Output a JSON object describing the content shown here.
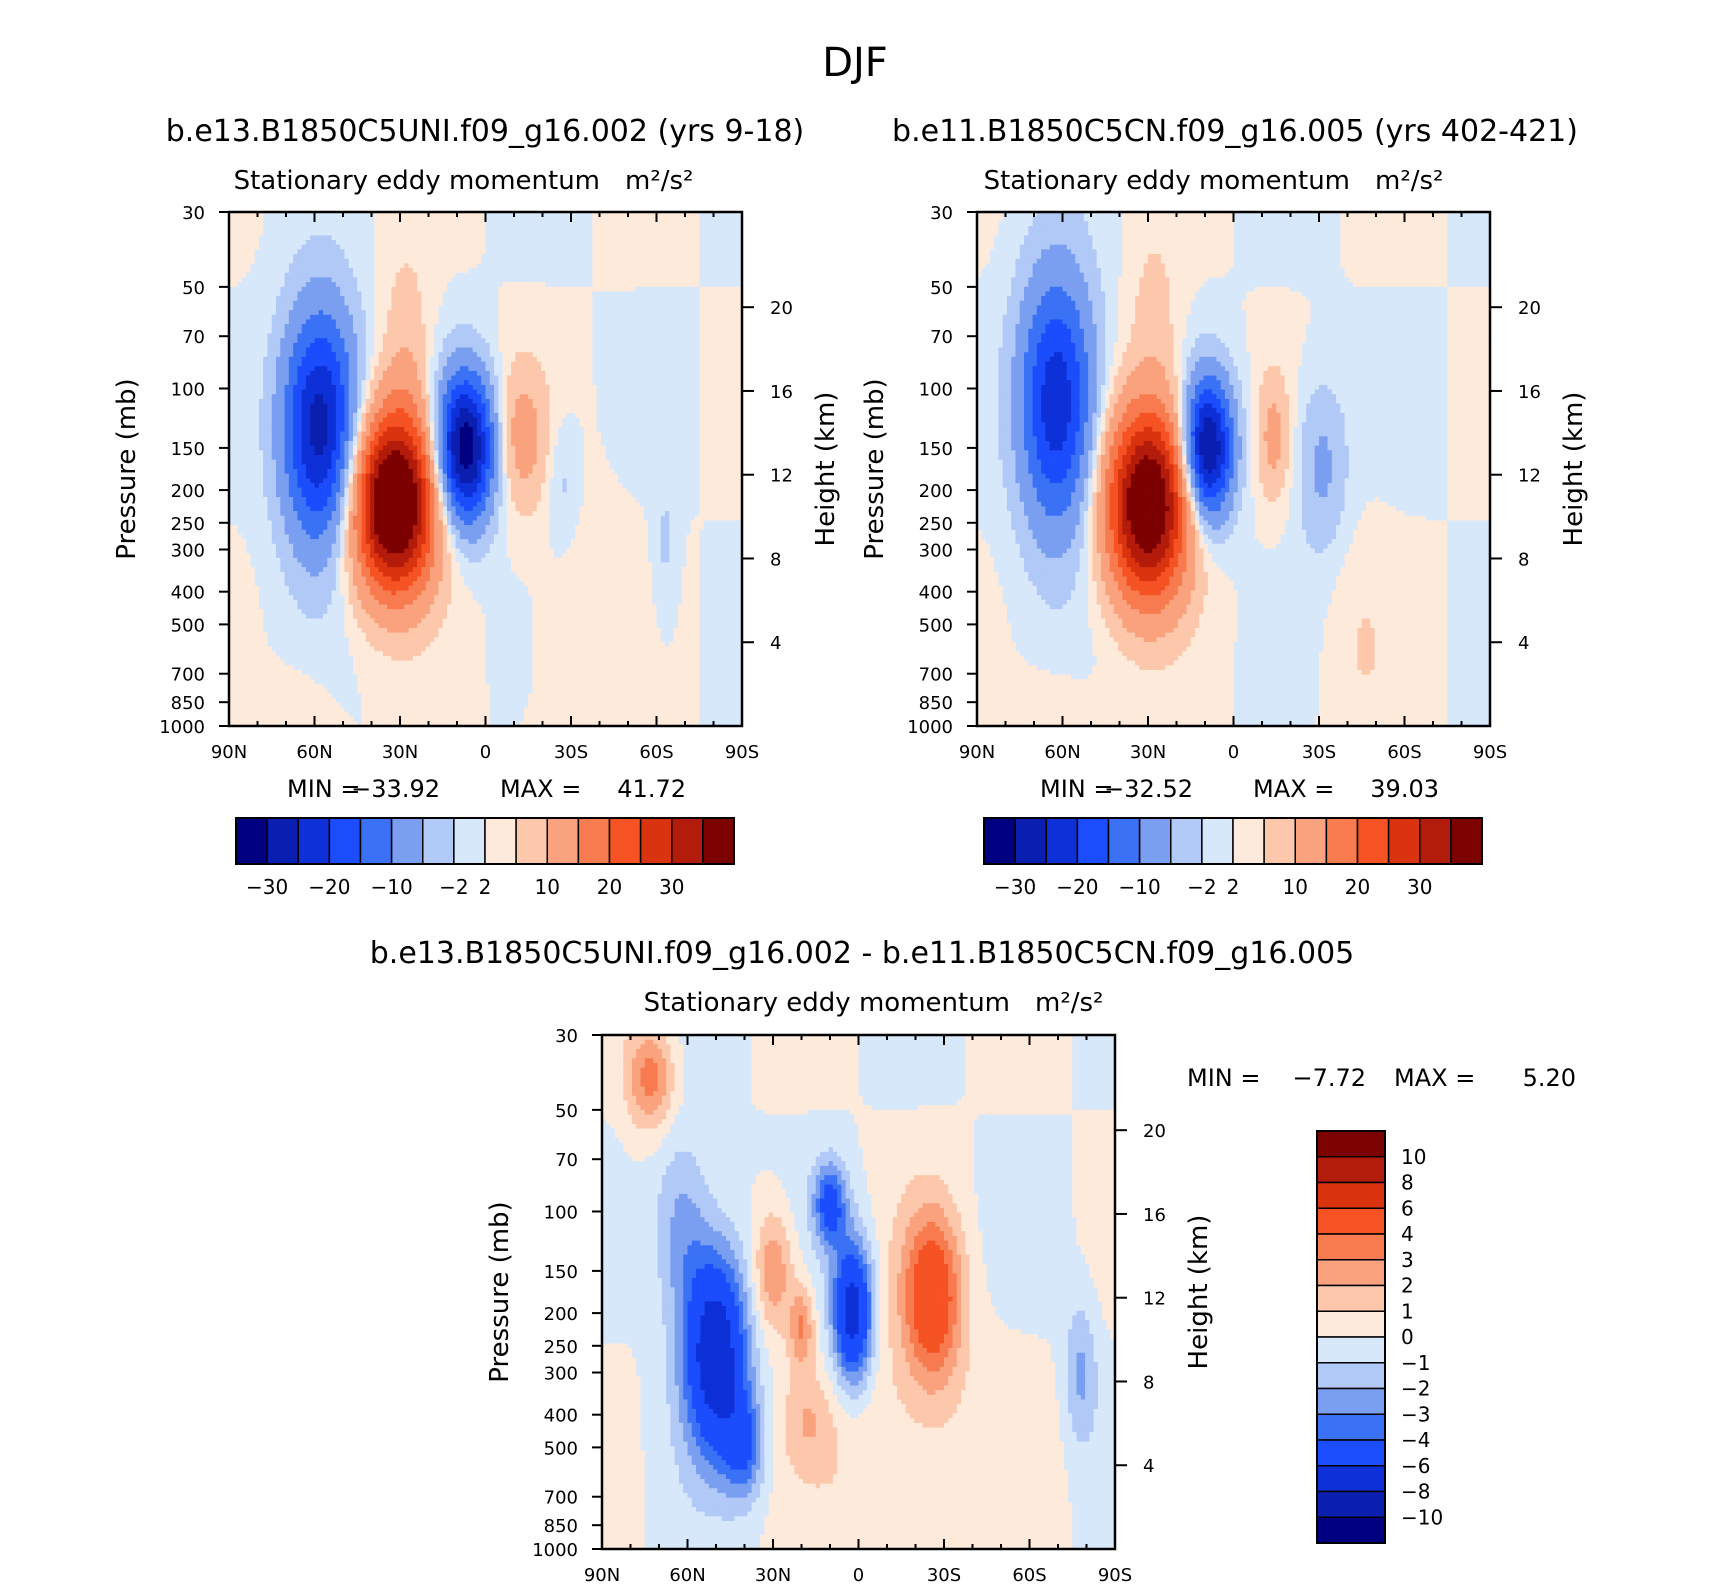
{
  "figure": {
    "title": "DJF",
    "units_label": "m²/s²"
  },
  "chart_data": [
    {
      "type": "contour",
      "id": "panel1",
      "run_title": "b.e13.B1850C5UNI.f09_g16.002 (yrs 9-18)",
      "subtitle": "Stationary eddy momentum",
      "ylabel": "Pressure (mb)",
      "y2label": "Height (km)",
      "x_ticks": [
        "90N",
        "60N",
        "30N",
        "0",
        "30S",
        "60S",
        "90S"
      ],
      "x_range": [
        90,
        -90
      ],
      "y_ticks": [
        30,
        50,
        70,
        100,
        150,
        200,
        250,
        300,
        400,
        500,
        700,
        850,
        1000
      ],
      "y_range_mb": [
        1000,
        30
      ],
      "y2_ticks": [
        4,
        8,
        12,
        16,
        20
      ],
      "min_label": "MIN =",
      "min": "-33.92",
      "max_label": "MAX =",
      "max": "41.72",
      "levels": [
        -30,
        -25,
        -20,
        -15,
        -10,
        -5,
        -2,
        0,
        2,
        5,
        10,
        15,
        20,
        25,
        30
      ],
      "colorbar_labels": [
        "-30",
        "-20",
        "-10",
        "-2",
        "2",
        "10",
        "20",
        "30"
      ],
      "features": [
        {
          "lat": 58,
          "p": 130,
          "value": -28,
          "lat_w": 9,
          "lp_w": 0.55
        },
        {
          "lat": 32,
          "p": 220,
          "value": 42,
          "lat_w": 10,
          "lp_w": 0.42
        },
        {
          "lat": 7,
          "p": 150,
          "value": -34,
          "lat_w": 7,
          "lp_w": 0.35
        },
        {
          "lat": -12,
          "p": 140,
          "value": 7,
          "lat_w": 7,
          "lp_w": 0.35
        },
        {
          "lat": -27,
          "p": 190,
          "value": -3,
          "lat_w": 4,
          "lp_w": 0.3
        },
        {
          "lat": -63,
          "p": 300,
          "value": -2.5,
          "lat_w": 3,
          "lp_w": 0.4
        },
        {
          "lat": 28,
          "p": 80,
          "value": 4,
          "lat_w": 6,
          "lp_w": 0.5
        },
        {
          "lat": -35,
          "p": 550,
          "value": 1.8,
          "lat_w": 12,
          "lp_w": 0.6
        },
        {
          "lat": 68,
          "p": 900,
          "value": 1.5,
          "lat_w": 10,
          "lp_w": 0.2
        }
      ]
    },
    {
      "type": "contour",
      "id": "panel2",
      "run_title": "b.e11.B1850C5CN.f09_g16.005 (yrs 402-421)",
      "subtitle": "Stationary eddy momentum",
      "ylabel": "Pressure (mb)",
      "y2label": "Height (km)",
      "x_ticks": [
        "90N",
        "60N",
        "30N",
        "0",
        "30S",
        "60S",
        "90S"
      ],
      "x_range": [
        90,
        -90
      ],
      "y_ticks": [
        30,
        50,
        70,
        100,
        150,
        200,
        250,
        300,
        400,
        500,
        700,
        850,
        1000
      ],
      "y_range_mb": [
        1000,
        30
      ],
      "y2_ticks": [
        4,
        8,
        12,
        16,
        20
      ],
      "min_label": "MIN =",
      "min": "-32.52",
      "max_label": "MAX =",
      "max": "39.03",
      "levels": [
        -30,
        -25,
        -20,
        -15,
        -10,
        -5,
        -2,
        0,
        2,
        5,
        10,
        15,
        20,
        25,
        30
      ],
      "colorbar_labels": [
        "-30",
        "-20",
        "-10",
        "-2",
        "2",
        "10",
        "20",
        "30"
      ],
      "features": [
        {
          "lat": 62,
          "p": 110,
          "value": -24,
          "lat_w": 9,
          "lp_w": 0.6
        },
        {
          "lat": 30,
          "p": 220,
          "value": 39,
          "lat_w": 10,
          "lp_w": 0.45
        },
        {
          "lat": 9,
          "p": 150,
          "value": -32,
          "lat_w": 6,
          "lp_w": 0.33
        },
        {
          "lat": -14,
          "p": 140,
          "value": 6,
          "lat_w": 4,
          "lp_w": 0.3
        },
        {
          "lat": -31,
          "p": 170,
          "value": -6,
          "lat_w": 6,
          "lp_w": 0.4
        },
        {
          "lat": 28,
          "p": 60,
          "value": 3,
          "lat_w": 6,
          "lp_w": 0.4
        },
        {
          "lat": -45,
          "p": 600,
          "value": 1.8,
          "lat_w": 8,
          "lp_w": 0.5
        },
        {
          "lat": 65,
          "p": 900,
          "value": 1.5,
          "lat_w": 12,
          "lp_w": 0.2
        }
      ]
    },
    {
      "type": "contour",
      "id": "panel3",
      "run_title": "b.e13.B1850C5UNI.f09_g16.002 - b.e11.B1850C5CN.f09_g16.005",
      "subtitle": "Stationary eddy momentum",
      "ylabel": "Pressure (mb)",
      "y2label": "Height (km)",
      "x_ticks": [
        "90N",
        "60N",
        "30N",
        "0",
        "30S",
        "60S",
        "90S"
      ],
      "x_range": [
        90,
        -90
      ],
      "y_ticks": [
        30,
        50,
        70,
        100,
        150,
        200,
        250,
        300,
        400,
        500,
        700,
        850,
        1000
      ],
      "y_range_mb": [
        1000,
        30
      ],
      "y2_ticks": [
        4,
        8,
        12,
        16,
        20
      ],
      "min_label": "MIN =",
      "min": "-7.72",
      "max_label": "MAX =",
      "max": "5.20",
      "levels": [
        -10,
        -8,
        -6,
        -4,
        -3,
        -2,
        -1,
        0,
        1,
        2,
        3,
        4,
        6,
        8,
        10
      ],
      "colorbar_labels": [
        "10",
        "8",
        "6",
        "4",
        "3",
        "2",
        "1",
        "0",
        "-1",
        "-2",
        "-3",
        "-4",
        "-6",
        "-8",
        "-10"
      ],
      "features": [
        {
          "lat": 50,
          "p": 260,
          "value": -7.7,
          "lat_w": 8,
          "lp_w": 0.5
        },
        {
          "lat": 62,
          "p": 110,
          "value": -2.5,
          "lat_w": 7,
          "lp_w": 0.45
        },
        {
          "lat": 40,
          "p": 500,
          "value": -3.5,
          "lat_w": 5,
          "lp_w": 0.25
        },
        {
          "lat": 30,
          "p": 150,
          "value": 3.2,
          "lat_w": 5,
          "lp_w": 0.3
        },
        {
          "lat": 20,
          "p": 220,
          "value": 3,
          "lat_w": 3,
          "lp_w": 0.2
        },
        {
          "lat": 2,
          "p": 200,
          "value": -7.5,
          "lat_w": 5,
          "lp_w": 0.35
        },
        {
          "lat": 10,
          "p": 95,
          "value": -4.5,
          "lat_w": 4,
          "lp_w": 0.2
        },
        {
          "lat": -26,
          "p": 180,
          "value": 5.2,
          "lat_w": 7,
          "lp_w": 0.4
        },
        {
          "lat": 73,
          "p": 40,
          "value": 3.5,
          "lat_w": 6,
          "lp_w": 0.25
        },
        {
          "lat": 18,
          "p": 420,
          "value": 1.3,
          "lat_w": 6,
          "lp_w": 0.2
        },
        {
          "lat": -78,
          "p": 300,
          "value": -2.2,
          "lat_w": 4,
          "lp_w": 0.35
        },
        {
          "lat": -15,
          "p": 500,
          "value": 1.2,
          "lat_w": 20,
          "lp_w": 0.8
        }
      ]
    }
  ],
  "colors": {
    "blue_red_15": [
      "#000080",
      "#0a1fb0",
      "#0d30d8",
      "#1b4dfd",
      "#3b72f5",
      "#7a9ff0",
      "#b1c9f7",
      "#d8e8fb",
      "#fdeadb",
      "#fcc7aa",
      "#f9a27d",
      "#f87b4f",
      "#f55324",
      "#d9330f",
      "#b31b0b",
      "#7c0101"
    ],
    "blue_red_16": [
      "#000080",
      "#0a1fb0",
      "#0d30d8",
      "#1b4dfd",
      "#3b72f5",
      "#7a9ff0",
      "#b1c9f7",
      "#d8e8fb",
      "#fdeadb",
      "#fcc7aa",
      "#f9a27d",
      "#f87b4f",
      "#f55324",
      "#d9330f",
      "#b31b0b",
      "#7c0101"
    ]
  }
}
